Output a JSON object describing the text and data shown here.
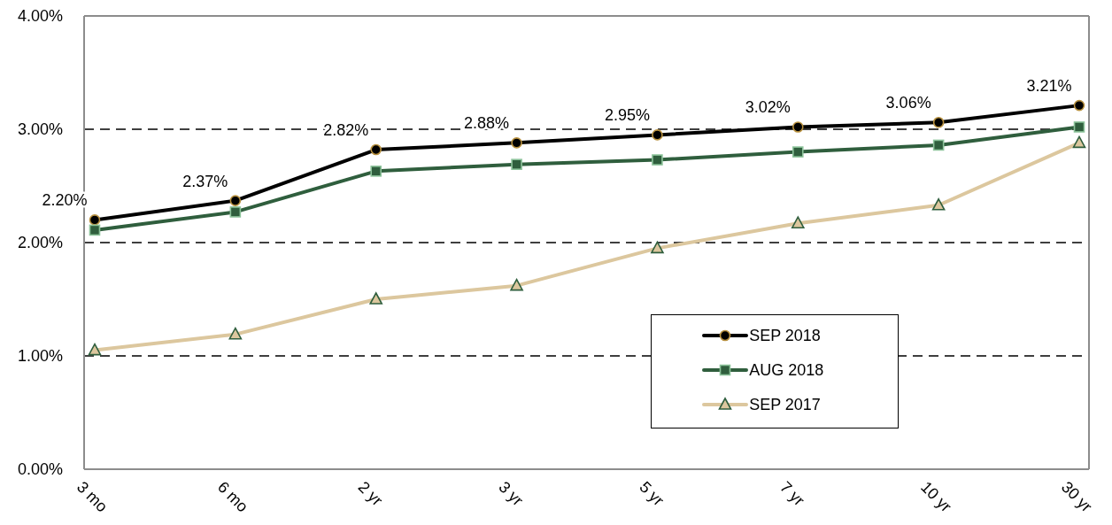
{
  "chart_data": {
    "type": "line",
    "categories": [
      "3 mo",
      "6 mo",
      "2 yr",
      "3 yr",
      "5 yr",
      "7 yr",
      "10 yr",
      "30 yr"
    ],
    "series": [
      {
        "name": "SEP 2018",
        "color": "#000000",
        "marker": "circle",
        "values": [
          2.2,
          2.37,
          2.82,
          2.88,
          2.95,
          3.02,
          3.06,
          3.21
        ],
        "value_labels": [
          "2.20%",
          "2.37%",
          "2.82%",
          "2.88%",
          "2.95%",
          "3.02%",
          "3.06%",
          "3.21%"
        ]
      },
      {
        "name": "AUG 2018",
        "color": "#2f5e3d",
        "marker": "square",
        "values": [
          2.11,
          2.27,
          2.63,
          2.69,
          2.73,
          2.8,
          2.86,
          3.02
        ]
      },
      {
        "name": "SEP 2017",
        "color": "#dcc79e",
        "marker": "triangle",
        "values": [
          1.05,
          1.19,
          1.5,
          1.62,
          1.95,
          2.17,
          2.33,
          2.88
        ]
      }
    ],
    "ylim": [
      0,
      4
    ],
    "yticks": [
      {
        "value": 0,
        "label": "0.00%"
      },
      {
        "value": 1,
        "label": "1.00%"
      },
      {
        "value": 2,
        "label": "2.00%"
      },
      {
        "value": 3,
        "label": "3.00%"
      },
      {
        "value": 4,
        "label": "4.00%"
      }
    ],
    "grid": "y",
    "legend": "bottom right",
    "line_style": "solid"
  }
}
